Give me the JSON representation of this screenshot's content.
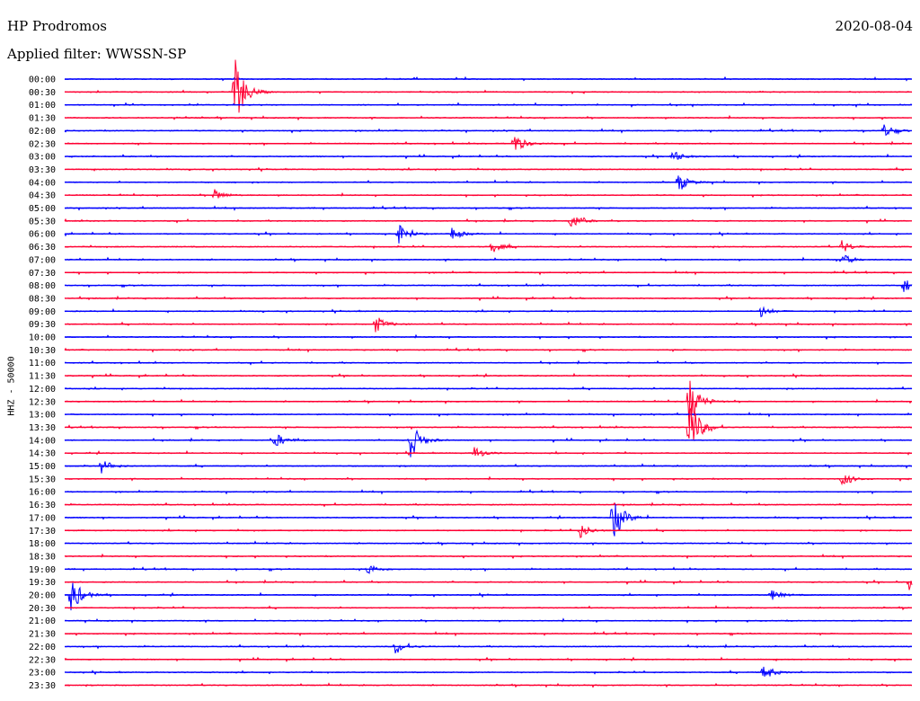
{
  "header": {
    "station": "HP Prodromos",
    "date": "2020-08-04",
    "filter_label": "Applied filter: WWSSN-SP",
    "channel_label": "HHZ - 50000"
  },
  "colors": {
    "even_rows": "#0000ff",
    "odd_rows": "#ff0033"
  },
  "chart_data": {
    "type": "line",
    "title": "HP Prodromos",
    "ylabel": "HHZ - 50000",
    "row_labels": [
      "00:00",
      "00:30",
      "01:00",
      "01:30",
      "02:00",
      "02:30",
      "03:00",
      "03:30",
      "04:00",
      "04:30",
      "05:00",
      "05:30",
      "06:00",
      "06:30",
      "07:00",
      "07:30",
      "08:00",
      "08:30",
      "09:00",
      "09:30",
      "10:00",
      "10:30",
      "11:00",
      "11:30",
      "12:00",
      "12:30",
      "13:00",
      "13:30",
      "14:00",
      "14:30",
      "15:00",
      "15:30",
      "16:00",
      "16:30",
      "17:00",
      "17:30",
      "18:00",
      "18:30",
      "19:00",
      "19:30",
      "20:00",
      "20:30",
      "21:00",
      "21:30",
      "22:00",
      "22:30",
      "23:00",
      "23:30"
    ],
    "row_minutes": 30,
    "events": [
      {
        "row": "00:30",
        "minute": 6,
        "amplitude": 3.5
      },
      {
        "row": "02:00",
        "minute": 29,
        "amplitude": 0.6
      },
      {
        "row": "02:30",
        "minute": 15.9,
        "amplitude": 1.0
      },
      {
        "row": "03:00",
        "minute": 21.5,
        "amplitude": 0.6
      },
      {
        "row": "04:00",
        "minute": 21.7,
        "amplitude": 0.9
      },
      {
        "row": "04:30",
        "minute": 5.3,
        "amplitude": 0.5
      },
      {
        "row": "05:30",
        "minute": 17.9,
        "amplitude": 0.8
      },
      {
        "row": "06:00",
        "minute": 11.8,
        "amplitude": 0.9
      },
      {
        "row": "06:00",
        "minute": 13.7,
        "amplitude": 0.6
      },
      {
        "row": "06:30",
        "minute": 15.1,
        "amplitude": 0.6
      },
      {
        "row": "06:30",
        "minute": 27.5,
        "amplitude": 0.6
      },
      {
        "row": "07:00",
        "minute": 27.5,
        "amplitude": 0.6
      },
      {
        "row": "08:00",
        "minute": 29.7,
        "amplitude": 0.7
      },
      {
        "row": "09:00",
        "minute": 24.6,
        "amplitude": 0.6
      },
      {
        "row": "09:30",
        "minute": 11.0,
        "amplitude": 0.8
      },
      {
        "row": "12:30",
        "minute": 22.1,
        "amplitude": 2.5
      },
      {
        "row": "13:30",
        "minute": 22.1,
        "amplitude": 3.0
      },
      {
        "row": "14:00",
        "minute": 7.4,
        "amplitude": 0.8
      },
      {
        "row": "14:00",
        "minute": 12.2,
        "amplitude": 2.0
      },
      {
        "row": "14:30",
        "minute": 14.5,
        "amplitude": 0.6
      },
      {
        "row": "15:00",
        "minute": 1.3,
        "amplitude": 0.6
      },
      {
        "row": "15:30",
        "minute": 27.5,
        "amplitude": 0.7
      },
      {
        "row": "17:00",
        "minute": 19.4,
        "amplitude": 2.4
      },
      {
        "row": "17:30",
        "minute": 18.2,
        "amplitude": 0.8
      },
      {
        "row": "19:00",
        "minute": 10.7,
        "amplitude": 0.6
      },
      {
        "row": "19:30",
        "minute": 29.9,
        "amplitude": 0.8
      },
      {
        "row": "20:00",
        "minute": 0.2,
        "amplitude": 1.9
      },
      {
        "row": "20:00",
        "minute": 25.0,
        "amplitude": 0.5
      },
      {
        "row": "22:00",
        "minute": 11.7,
        "amplitude": 0.6
      },
      {
        "row": "23:00",
        "minute": 24.7,
        "amplitude": 0.9
      }
    ]
  }
}
